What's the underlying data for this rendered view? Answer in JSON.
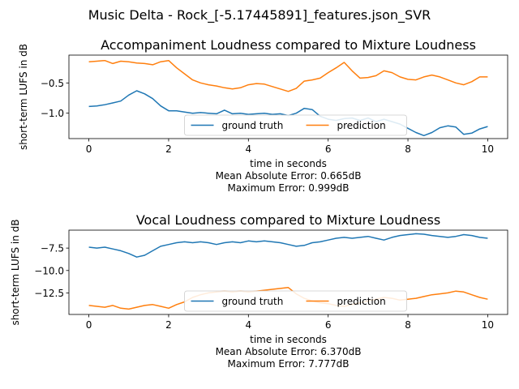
{
  "suptitle": "Music Delta - Rock_[-5.17445891]_features.json_SVR",
  "colors": {
    "ground_truth": "#1f77b4",
    "prediction": "#ff7f0e"
  },
  "chart_data": [
    {
      "type": "line",
      "title": "Accompaniment Loudness compared to Mixture Loudness",
      "xlabel": "time in seconds",
      "ylabel": "short-term LUFS in dB",
      "metrics": [
        "Mean Absolute Error: 0.665dB",
        "Maximum Error: 0.999dB"
      ],
      "xlim": [
        -0.5,
        10.5
      ],
      "ylim": [
        -1.42,
        -0.04
      ],
      "xticks": [
        0,
        2,
        4,
        6,
        8,
        10
      ],
      "yticks": [
        -1.0,
        -0.5
      ],
      "ytick_labels": [
        "−1.0",
        "−0.5"
      ],
      "legend": "lower-center",
      "x": [
        0,
        0.2,
        0.4,
        0.6,
        0.8,
        1.0,
        1.2,
        1.4,
        1.6,
        1.8,
        2.0,
        2.2,
        2.4,
        2.6,
        2.8,
        3.0,
        3.2,
        3.4,
        3.6,
        3.8,
        4.0,
        4.2,
        4.4,
        4.6,
        4.8,
        5.0,
        5.2,
        5.4,
        5.6,
        5.8,
        6.0,
        6.2,
        6.4,
        6.6,
        6.8,
        7.0,
        7.2,
        7.4,
        7.6,
        7.8,
        8.0,
        8.2,
        8.4,
        8.6,
        8.8,
        9.0,
        9.2,
        9.4,
        9.6,
        9.8,
        10.0
      ],
      "series": [
        {
          "name": "ground truth",
          "color": "#1f77b4",
          "values": [
            -0.89,
            -0.88,
            -0.86,
            -0.83,
            -0.8,
            -0.7,
            -0.63,
            -0.68,
            -0.76,
            -0.88,
            -0.96,
            -0.96,
            -0.98,
            -1.0,
            -0.99,
            -1.0,
            -1.01,
            -0.95,
            -1.01,
            -1.0,
            -1.02,
            -1.01,
            -1.0,
            -1.02,
            -1.01,
            -1.04,
            -1.0,
            -0.92,
            -0.94,
            -1.05,
            -1.1,
            -1.12,
            -1.09,
            -1.08,
            -1.12,
            -1.08,
            -1.14,
            -1.1,
            -1.14,
            -1.18,
            -1.25,
            -1.32,
            -1.37,
            -1.32,
            -1.24,
            -1.21,
            -1.23,
            -1.35,
            -1.33,
            -1.26,
            -1.22
          ]
        },
        {
          "name": "prediction",
          "color": "#ff7f0e",
          "values": [
            -0.15,
            -0.14,
            -0.13,
            -0.18,
            -0.14,
            -0.15,
            -0.17,
            -0.18,
            -0.2,
            -0.15,
            -0.13,
            -0.25,
            -0.35,
            -0.45,
            -0.5,
            -0.53,
            -0.55,
            -0.58,
            -0.6,
            -0.58,
            -0.53,
            -0.51,
            -0.52,
            -0.56,
            -0.6,
            -0.64,
            -0.59,
            -0.47,
            -0.45,
            -0.42,
            -0.33,
            -0.25,
            -0.16,
            -0.3,
            -0.42,
            -0.41,
            -0.38,
            -0.3,
            -0.33,
            -0.4,
            -0.44,
            -0.45,
            -0.4,
            -0.37,
            -0.4,
            -0.45,
            -0.5,
            -0.53,
            -0.48,
            -0.4,
            -0.4
          ]
        }
      ]
    },
    {
      "type": "line",
      "title": "Vocal Loudness compared to Mixture Loudness",
      "xlabel": "time in seconds",
      "ylabel": "short-term LUFS in dB",
      "metrics": [
        "Mean Absolute Error: 6.370dB",
        "Maximum Error: 7.777dB"
      ],
      "xlim": [
        -0.5,
        10.5
      ],
      "ylim": [
        -14.9,
        -5.5
      ],
      "xticks": [
        0,
        2,
        4,
        6,
        8,
        10
      ],
      "yticks": [
        -12.5,
        -10.0,
        -7.5
      ],
      "ytick_labels": [
        "−12.5",
        "−10.0",
        "−7.5"
      ],
      "legend": "lower-center",
      "x": [
        0,
        0.2,
        0.4,
        0.6,
        0.8,
        1.0,
        1.2,
        1.4,
        1.6,
        1.8,
        2.0,
        2.2,
        2.4,
        2.6,
        2.8,
        3.0,
        3.2,
        3.4,
        3.6,
        3.8,
        4.0,
        4.2,
        4.4,
        4.6,
        4.8,
        5.0,
        5.2,
        5.4,
        5.6,
        5.8,
        6.0,
        6.2,
        6.4,
        6.6,
        6.8,
        7.0,
        7.2,
        7.4,
        7.6,
        7.8,
        8.0,
        8.2,
        8.4,
        8.6,
        8.8,
        9.0,
        9.2,
        9.4,
        9.6,
        9.8,
        10.0
      ],
      "series": [
        {
          "name": "ground truth",
          "color": "#1f77b4",
          "values": [
            -7.4,
            -7.5,
            -7.4,
            -7.6,
            -7.8,
            -8.1,
            -8.5,
            -8.3,
            -7.8,
            -7.3,
            -7.1,
            -6.9,
            -6.8,
            -6.9,
            -6.8,
            -6.9,
            -7.1,
            -6.9,
            -6.8,
            -6.9,
            -6.7,
            -6.8,
            -6.7,
            -6.8,
            -6.9,
            -7.1,
            -7.3,
            -7.2,
            -6.9,
            -6.8,
            -6.6,
            -6.4,
            -6.3,
            -6.4,
            -6.3,
            -6.2,
            -6.4,
            -6.6,
            -6.3,
            -6.1,
            -6.0,
            -5.9,
            -5.95,
            -6.1,
            -6.2,
            -6.3,
            -6.2,
            -6.0,
            -6.1,
            -6.3,
            -6.4
          ]
        },
        {
          "name": "prediction",
          "color": "#ff7f0e",
          "values": [
            -13.9,
            -14.0,
            -14.1,
            -13.9,
            -14.2,
            -14.3,
            -14.1,
            -13.9,
            -13.8,
            -14.0,
            -14.2,
            -13.8,
            -13.5,
            -13.0,
            -12.7,
            -12.5,
            -12.4,
            -12.3,
            -12.4,
            -12.3,
            -12.4,
            -12.3,
            -12.2,
            -12.1,
            -12.0,
            -11.9,
            -12.6,
            -13.1,
            -13.4,
            -13.6,
            -13.7,
            -13.9,
            -14.0,
            -13.8,
            -13.6,
            -13.4,
            -13.2,
            -13.0,
            -13.1,
            -13.3,
            -13.2,
            -13.1,
            -12.9,
            -12.7,
            -12.6,
            -12.5,
            -12.3,
            -12.4,
            -12.7,
            -13.0,
            -13.2
          ]
        }
      ]
    }
  ]
}
